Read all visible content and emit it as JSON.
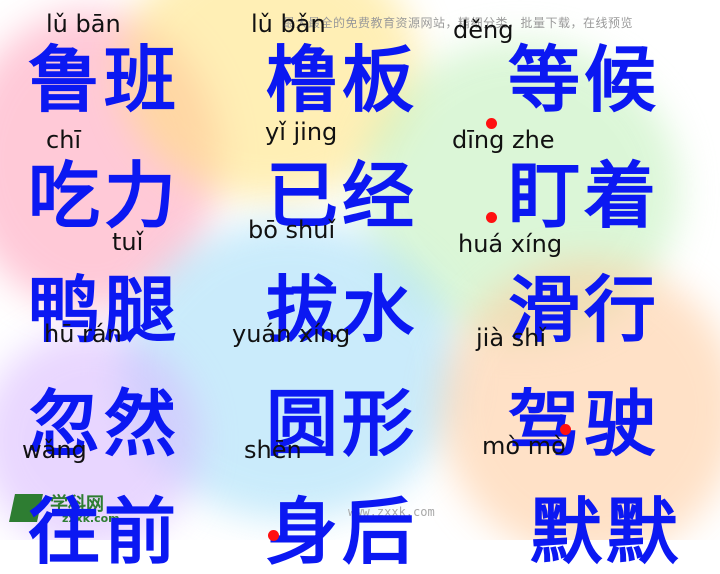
{
  "watermark": {
    "top": "最大最全的免费教育资源网站，精细分类，批量下载，在线预览",
    "bottom_url": "www.zxxk.com"
  },
  "logo": {
    "name": "学科网",
    "url": "zxxk.com"
  },
  "rows": [
    {
      "pinyin": [
        "lǔ   bān",
        "lǔ   bǎn",
        "děng"
      ],
      "words": [
        "鲁班",
        "橹板",
        "等候"
      ]
    },
    {
      "pinyin": [
        "chī",
        "yǐ  jing",
        "dīng  zhe"
      ],
      "words": [
        "吃力",
        "已经",
        "盯着"
      ]
    },
    {
      "pinyin": [
        "tuǐ",
        "bō  shuǐ",
        "huá  xíng"
      ],
      "words": [
        "鸭腿",
        "拔水",
        "滑行"
      ]
    },
    {
      "pinyin": [
        "hū  rán",
        "yuán  xíng",
        "jià  shǐ"
      ],
      "words": [
        "忽然",
        "圆形",
        "驾驶"
      ]
    },
    {
      "pinyin": [
        "wǎng",
        "shēn",
        "mò mò"
      ],
      "words": [
        "往前",
        "身后",
        "默默"
      ]
    }
  ],
  "colors": {
    "word": "#0b18f2",
    "pinyin": "#111111",
    "dot": "#ff1010",
    "logo": "#2e7d32"
  }
}
